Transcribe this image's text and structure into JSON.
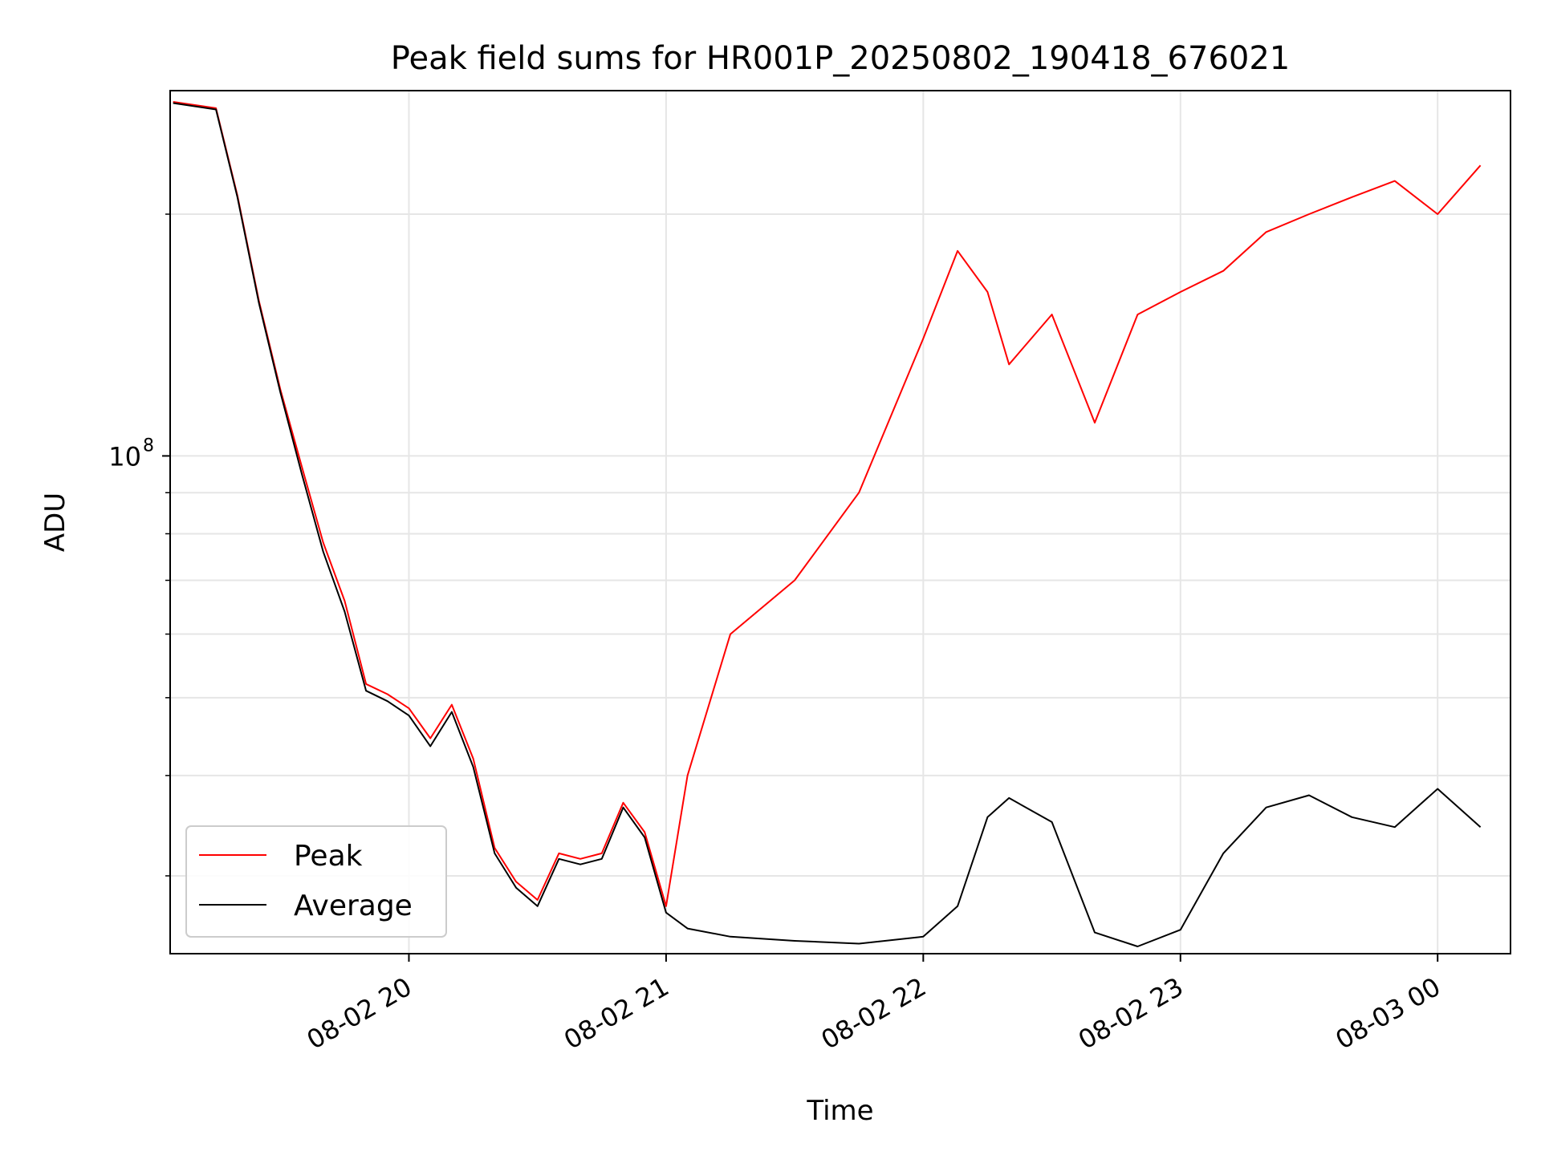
{
  "chart_data": {
    "type": "line",
    "title": "Peak field sums for HR001P_20250802_190418_676021",
    "xlabel": "Time",
    "ylabel": "ADU",
    "y_scale": "log",
    "ylim": [
      24000000,
      285000000
    ],
    "xlim": [
      "2025-08-02 19:04:18",
      "2025-08-03 00:17:00"
    ],
    "grid": true,
    "legend_position": "lower-left",
    "x_ticks": [
      {
        "value": "2025-08-02 20:00",
        "label": "08-02 20"
      },
      {
        "value": "2025-08-02 21:00",
        "label": "08-02 21"
      },
      {
        "value": "2025-08-02 22:00",
        "label": "08-02 22"
      },
      {
        "value": "2025-08-02 23:00",
        "label": "08-02 23"
      },
      {
        "value": "2025-08-03 00:00",
        "label": "08-03 00"
      }
    ],
    "y_ticks": [
      {
        "value": 100000000,
        "base": "10",
        "exponent": "8"
      }
    ],
    "series": [
      {
        "name": "Average",
        "color": "#000000",
        "x": [
          "2025-08-02 19:05",
          "2025-08-02 19:15",
          "2025-08-02 19:20",
          "2025-08-02 19:25",
          "2025-08-02 19:30",
          "2025-08-02 19:35",
          "2025-08-02 19:40",
          "2025-08-02 19:45",
          "2025-08-02 19:50",
          "2025-08-02 19:55",
          "2025-08-02 20:00",
          "2025-08-02 20:05",
          "2025-08-02 20:10",
          "2025-08-02 20:15",
          "2025-08-02 20:20",
          "2025-08-02 20:25",
          "2025-08-02 20:30",
          "2025-08-02 20:35",
          "2025-08-02 20:40",
          "2025-08-02 20:45",
          "2025-08-02 20:50",
          "2025-08-02 20:55",
          "2025-08-02 21:00",
          "2025-08-02 21:05",
          "2025-08-02 21:15",
          "2025-08-02 21:30",
          "2025-08-02 21:45",
          "2025-08-02 22:00",
          "2025-08-02 22:08",
          "2025-08-02 22:15",
          "2025-08-02 22:20",
          "2025-08-02 22:30",
          "2025-08-02 22:40",
          "2025-08-02 22:50",
          "2025-08-02 23:00",
          "2025-08-02 23:10",
          "2025-08-02 23:20",
          "2025-08-02 23:30",
          "2025-08-02 23:40",
          "2025-08-02 23:50",
          "2025-08-03 00:00",
          "2025-08-03 00:10"
        ],
        "values": [
          275000000,
          270000000,
          210000000,
          155000000,
          120000000,
          95000000,
          76000000,
          64000000,
          51000000,
          49500000,
          47500000,
          43500000,
          48000000,
          41000000,
          32000000,
          29000000,
          27500000,
          31500000,
          31000000,
          31500000,
          36500000,
          33500000,
          27000000,
          25800000,
          25200000,
          24900000,
          24700000,
          25200000,
          27500000,
          35500000,
          37500000,
          35000000,
          25500000,
          24500000,
          25700000,
          32000000,
          36500000,
          37800000,
          35500000,
          34500000,
          38500000,
          34500000
        ]
      },
      {
        "name": "Peak",
        "color": "#ff0000",
        "x": [
          "2025-08-02 19:05",
          "2025-08-02 19:15",
          "2025-08-02 19:20",
          "2025-08-02 19:25",
          "2025-08-02 19:30",
          "2025-08-02 19:35",
          "2025-08-02 19:40",
          "2025-08-02 19:45",
          "2025-08-02 19:50",
          "2025-08-02 19:55",
          "2025-08-02 20:00",
          "2025-08-02 20:05",
          "2025-08-02 20:10",
          "2025-08-02 20:15",
          "2025-08-02 20:20",
          "2025-08-02 20:25",
          "2025-08-02 20:30",
          "2025-08-02 20:35",
          "2025-08-02 20:40",
          "2025-08-02 20:45",
          "2025-08-02 20:50",
          "2025-08-02 20:55",
          "2025-08-02 21:00",
          "2025-08-02 21:05",
          "2025-08-02 21:15",
          "2025-08-02 21:30",
          "2025-08-02 21:45",
          "2025-08-02 22:00",
          "2025-08-02 22:08",
          "2025-08-02 22:15",
          "2025-08-02 22:20",
          "2025-08-02 22:30",
          "2025-08-02 22:40",
          "2025-08-02 22:50",
          "2025-08-02 23:00",
          "2025-08-02 23:10",
          "2025-08-02 23:20",
          "2025-08-02 23:30",
          "2025-08-02 23:40",
          "2025-08-02 23:50",
          "2025-08-03 00:00",
          "2025-08-03 00:10"
        ],
        "values": [
          276000000,
          271000000,
          211000000,
          156000000,
          121000000,
          97000000,
          78000000,
          66000000,
          52000000,
          50500000,
          48500000,
          44500000,
          49000000,
          42000000,
          32500000,
          29500000,
          28000000,
          32000000,
          31500000,
          32000000,
          37000000,
          34000000,
          27500000,
          40000000,
          60000000,
          70000000,
          90000000,
          140000000,
          180000000,
          160000000,
          130000000,
          150000000,
          110000000,
          150000000,
          160000000,
          170000000,
          190000000,
          200000000,
          210000000,
          220000000,
          200000000,
          230000000
        ]
      }
    ]
  }
}
